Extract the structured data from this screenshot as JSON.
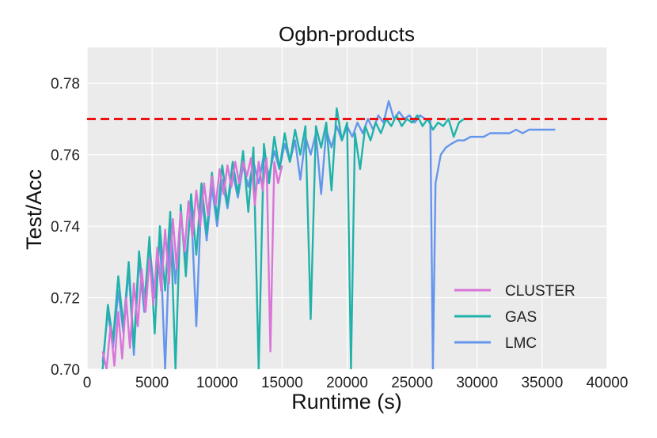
{
  "chart_data": {
    "type": "line",
    "title": "Ogbn-products",
    "xlabel": "Runtime (s)",
    "ylabel": "Test/Acc",
    "xlim": [
      0,
      40000
    ],
    "ylim": [
      0.7,
      0.79
    ],
    "x_ticks": [
      0,
      5000,
      10000,
      15000,
      20000,
      25000,
      30000,
      35000,
      40000
    ],
    "y_ticks": [
      0.7,
      0.72,
      0.74,
      0.76,
      0.78
    ],
    "x_tick_labels": [
      "0",
      "5000",
      "10000",
      "15000",
      "20000",
      "25000",
      "30000",
      "35000",
      "40000"
    ],
    "y_tick_labels": [
      "0.70",
      "0.72",
      "0.74",
      "0.76",
      "0.78"
    ],
    "grid": true,
    "legend": "bottom-right",
    "reference_line": {
      "y": 0.77,
      "style": "dashed",
      "color": "#ee1111"
    },
    "series": [
      {
        "name": "CLUSTER",
        "color": "#d974d9",
        "x": [
          1200,
          1500,
          1800,
          2100,
          2400,
          2700,
          3000,
          3300,
          3600,
          3900,
          4200,
          4500,
          4800,
          5100,
          5400,
          5700,
          6000,
          6300,
          6600,
          6900,
          7200,
          7500,
          7800,
          8100,
          8400,
          8700,
          9000,
          9300,
          9600,
          9900,
          10200,
          10500,
          10800,
          11100,
          11400,
          11700,
          12000,
          12300,
          12600,
          12900,
          13200,
          13500,
          13800,
          14100,
          14400,
          14700,
          15000
        ],
        "y": [
          0.705,
          0.7,
          0.712,
          0.701,
          0.716,
          0.703,
          0.72,
          0.706,
          0.724,
          0.712,
          0.728,
          0.716,
          0.731,
          0.718,
          0.734,
          0.722,
          0.739,
          0.724,
          0.742,
          0.728,
          0.744,
          0.733,
          0.747,
          0.737,
          0.75,
          0.74,
          0.752,
          0.743,
          0.754,
          0.746,
          0.756,
          0.749,
          0.757,
          0.751,
          0.758,
          0.752,
          0.758,
          0.754,
          0.759,
          0.746,
          0.758,
          0.75,
          0.759,
          0.705,
          0.758,
          0.752,
          0.757
        ]
      },
      {
        "name": "GAS",
        "color": "#20b2aa",
        "x": [
          1200,
          1600,
          2000,
          2400,
          2800,
          3200,
          3600,
          4000,
          4400,
          4800,
          5200,
          5600,
          6000,
          6400,
          6800,
          7200,
          7600,
          8000,
          8400,
          8800,
          9200,
          9600,
          10000,
          10400,
          10800,
          11200,
          11600,
          12000,
          12400,
          12800,
          13200,
          13600,
          14000,
          14400,
          14800,
          15200,
          15600,
          16000,
          16400,
          16800,
          17200,
          17600,
          18000,
          18400,
          18800,
          19200,
          19600,
          20000,
          20300,
          20600,
          21000,
          21400,
          21800,
          22200,
          22600,
          23000,
          23400,
          23800,
          24200,
          24600,
          25000,
          25400,
          25800,
          26200,
          26600,
          27000,
          27400,
          27800,
          28200,
          28600,
          29000
        ],
        "y": [
          0.7,
          0.718,
          0.708,
          0.726,
          0.712,
          0.73,
          0.706,
          0.733,
          0.718,
          0.737,
          0.71,
          0.74,
          0.722,
          0.744,
          0.7,
          0.746,
          0.726,
          0.749,
          0.732,
          0.752,
          0.738,
          0.755,
          0.742,
          0.757,
          0.746,
          0.758,
          0.749,
          0.761,
          0.744,
          0.762,
          0.7,
          0.763,
          0.752,
          0.765,
          0.756,
          0.766,
          0.758,
          0.767,
          0.76,
          0.768,
          0.714,
          0.768,
          0.762,
          0.769,
          0.75,
          0.773,
          0.764,
          0.769,
          0.7,
          0.766,
          0.756,
          0.768,
          0.764,
          0.769,
          0.766,
          0.77,
          0.768,
          0.771,
          0.768,
          0.77,
          0.769,
          0.771,
          0.768,
          0.77,
          0.767,
          0.769,
          0.768,
          0.77,
          0.765,
          0.769,
          0.77
        ]
      },
      {
        "name": "LMC",
        "color": "#6495ed",
        "x": [
          1200,
          1600,
          2000,
          2400,
          2800,
          3200,
          3600,
          4000,
          4400,
          4800,
          5200,
          5600,
          6000,
          6400,
          6800,
          7200,
          7600,
          8000,
          8400,
          8800,
          9200,
          9600,
          10000,
          10400,
          10800,
          11200,
          11600,
          12000,
          12400,
          12800,
          13200,
          13600,
          14000,
          14400,
          14800,
          15200,
          15600,
          16000,
          16400,
          16800,
          17200,
          17600,
          18000,
          18400,
          18800,
          19200,
          19600,
          20000,
          20400,
          20800,
          21200,
          21600,
          22000,
          22400,
          22800,
          23200,
          23600,
          24000,
          24400,
          24800,
          25200,
          25600,
          26000,
          26400,
          26600,
          26800,
          27200,
          27600,
          28000,
          28500,
          29000,
          29500,
          30000,
          30500,
          31000,
          31500,
          32000,
          32500,
          33000,
          33500,
          34000,
          34500,
          35000,
          35500,
          36000
        ],
        "y": [
          0.702,
          0.716,
          0.706,
          0.722,
          0.71,
          0.728,
          0.704,
          0.731,
          0.716,
          0.735,
          0.72,
          0.738,
          0.7,
          0.741,
          0.724,
          0.744,
          0.73,
          0.746,
          0.712,
          0.749,
          0.736,
          0.751,
          0.74,
          0.753,
          0.745,
          0.755,
          0.748,
          0.757,
          0.751,
          0.758,
          0.752,
          0.76,
          0.754,
          0.761,
          0.756,
          0.763,
          0.758,
          0.764,
          0.753,
          0.765,
          0.76,
          0.766,
          0.749,
          0.767,
          0.762,
          0.768,
          0.764,
          0.768,
          0.765,
          0.769,
          0.766,
          0.77,
          0.767,
          0.771,
          0.769,
          0.775,
          0.77,
          0.772,
          0.77,
          0.771,
          0.769,
          0.771,
          0.77,
          0.77,
          0.7,
          0.752,
          0.76,
          0.762,
          0.763,
          0.764,
          0.764,
          0.765,
          0.765,
          0.765,
          0.766,
          0.766,
          0.766,
          0.766,
          0.767,
          0.766,
          0.767,
          0.767,
          0.767,
          0.767,
          0.767
        ]
      }
    ]
  }
}
